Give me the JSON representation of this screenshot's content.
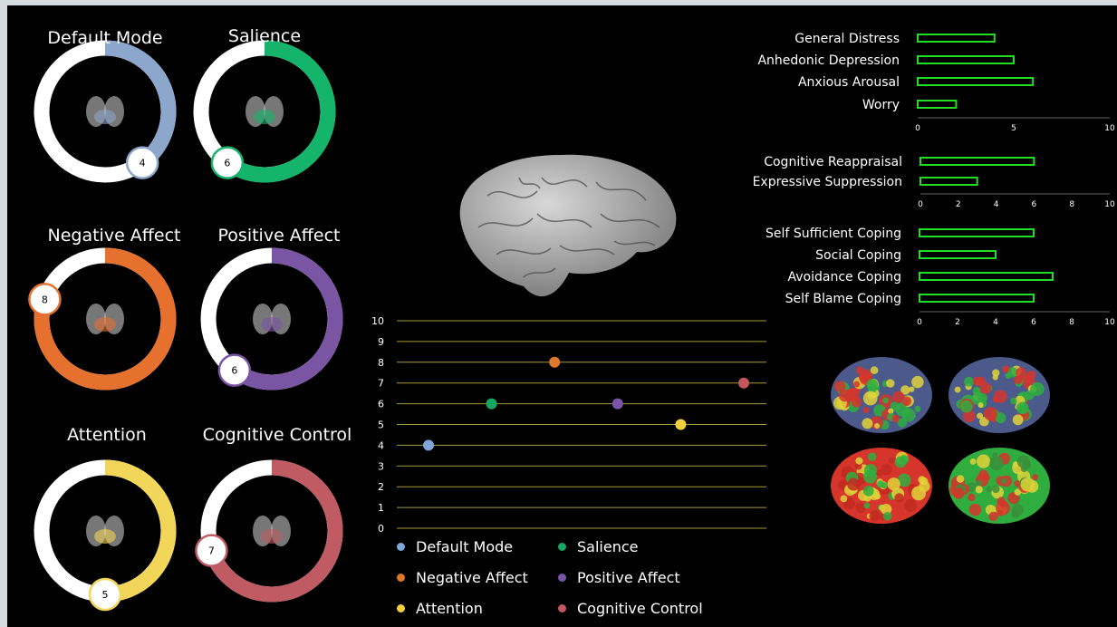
{
  "chart_data": [
    {
      "type": "donut",
      "panels": [
        {
          "title": "Default Mode",
          "value": 4,
          "max": 10,
          "color": "#8da6cc"
        },
        {
          "title": "Salience",
          "value": 6,
          "max": 10,
          "color": "#14b56a"
        },
        {
          "title": "Negative Affect",
          "value": 8,
          "max": 10,
          "color": "#e6702e"
        },
        {
          "title": "Positive Affect",
          "value": 6,
          "max": 10,
          "color": "#7a55a3"
        },
        {
          "title": "Attention",
          "value": 5,
          "max": 10,
          "color": "#f1d65a"
        },
        {
          "title": "Cognitive Control",
          "value": 7,
          "max": 10,
          "color": "#c05a63"
        }
      ]
    },
    {
      "type": "scatter",
      "ylim": [
        0,
        10
      ],
      "yticks": [
        0,
        1,
        2,
        3,
        4,
        5,
        6,
        7,
        8,
        9,
        10
      ],
      "grid": true,
      "series": [
        {
          "name": "Default Mode",
          "y": 4,
          "color": "#7fa7d9"
        },
        {
          "name": "Salience",
          "y": 6,
          "color": "#16a862"
        },
        {
          "name": "Negative Affect",
          "y": 8,
          "color": "#e0772f"
        },
        {
          "name": "Positive Affect",
          "y": 6,
          "color": "#7b55a8"
        },
        {
          "name": "Attention",
          "y": 5,
          "color": "#f2d03c"
        },
        {
          "name": "Cognitive Control",
          "y": 7,
          "color": "#c4565e"
        }
      ],
      "legend_position": "bottom"
    },
    {
      "type": "bar",
      "orientation": "horizontal",
      "categories": [
        "General Distress",
        "Anhedonic Depression",
        "Anxious Arousal",
        "Worry"
      ],
      "values": [
        4,
        5,
        6,
        2
      ],
      "xlim": [
        0,
        10
      ],
      "xticks": [
        0,
        5,
        10
      ],
      "color": "#22dd22"
    },
    {
      "type": "bar",
      "orientation": "horizontal",
      "categories": [
        "Cognitive Reappraisal",
        "Expressive Suppression"
      ],
      "values": [
        6,
        3
      ],
      "xlim": [
        0,
        10
      ],
      "xticks": [
        0,
        2,
        4,
        6,
        8,
        10
      ],
      "color": "#22dd22"
    },
    {
      "type": "bar",
      "orientation": "horizontal",
      "categories": [
        "Self Sufficient Coping",
        "Social Coping",
        "Avoidance Coping",
        "Self Blame Coping"
      ],
      "values": [
        6,
        4,
        7,
        6
      ],
      "xlim": [
        0,
        10
      ],
      "xticks": [
        0,
        2,
        4,
        6,
        8,
        10
      ],
      "color": "#22dd22"
    }
  ],
  "colors": {
    "background": "#000000",
    "gridline": "#a69a3c",
    "bar_outline": "#22dd22"
  }
}
